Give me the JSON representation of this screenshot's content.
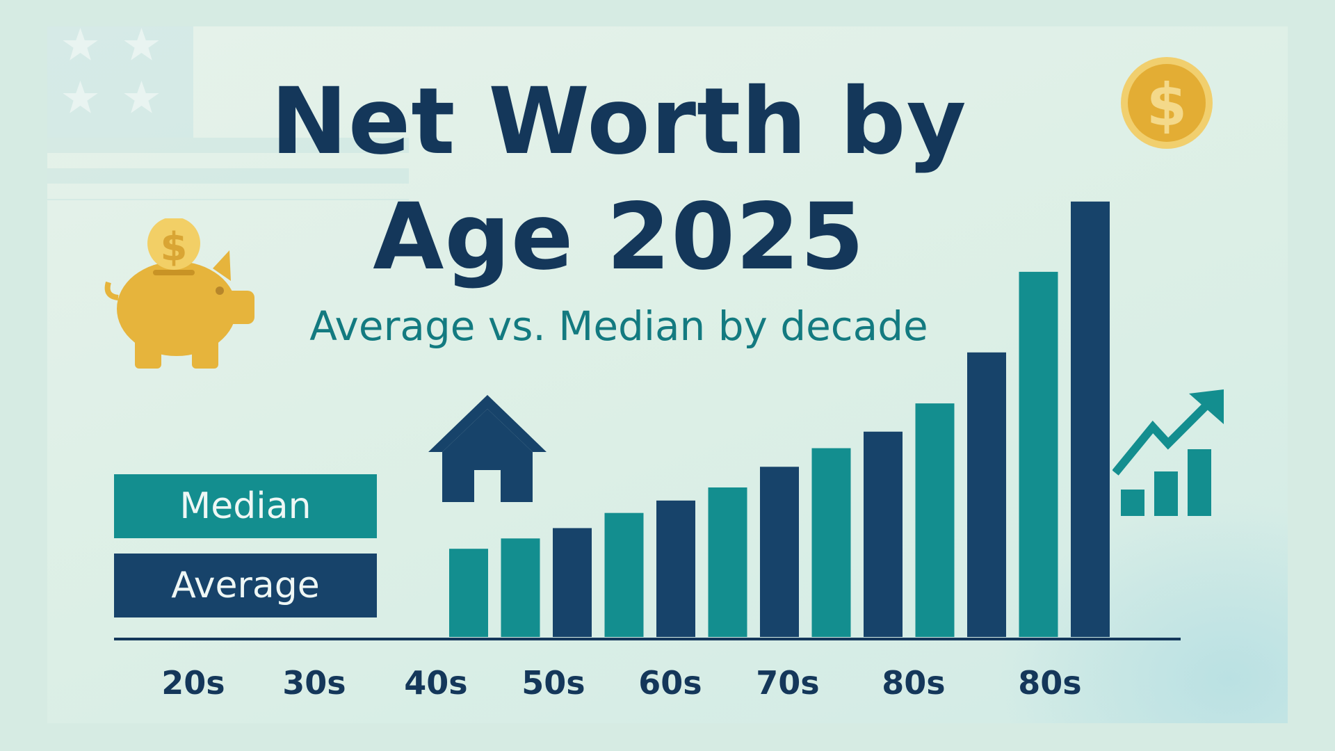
{
  "colors": {
    "median": "#138e8f",
    "average": "#17436a",
    "title": "#14375a",
    "subtitle": "#137a80",
    "gold": "#e6b43c"
  },
  "header": {
    "title_line1": "Net Worth by",
    "title_line2": "Age 2025",
    "subtitle": "Average vs. Median by decade"
  },
  "legend": {
    "median": "Median",
    "average": "Average"
  },
  "icons": [
    "flag-stars-icon",
    "coin-dollar-icon",
    "piggy-bank-icon",
    "house-icon",
    "growth-chart-icon"
  ],
  "chart_data": {
    "type": "bar",
    "title": "Net Worth by Age 2025",
    "subtitle": "Average vs. Median by decade",
    "xlabel": "",
    "ylabel": "",
    "grid": false,
    "legend_position": "left",
    "tick_labels": [
      "20s",
      "30s",
      "40s",
      "50s",
      "60s",
      "70s",
      "80s",
      "80s"
    ],
    "bars": [
      {
        "series": "Median",
        "value": 128
      },
      {
        "series": "Median",
        "value": 143
      },
      {
        "series": "Average",
        "value": 158
      },
      {
        "series": "Median",
        "value": 180
      },
      {
        "series": "Average",
        "value": 198
      },
      {
        "series": "Median",
        "value": 217
      },
      {
        "series": "Average",
        "value": 247
      },
      {
        "series": "Median",
        "value": 274
      },
      {
        "series": "Average",
        "value": 298
      },
      {
        "series": "Median",
        "value": 339
      },
      {
        "series": "Average",
        "value": 413
      },
      {
        "series": "Median",
        "value": 530
      },
      {
        "series": "Average",
        "value": 632
      }
    ],
    "ylim": [
      0,
      650
    ],
    "series": [
      {
        "name": "Median"
      },
      {
        "name": "Average"
      }
    ]
  }
}
